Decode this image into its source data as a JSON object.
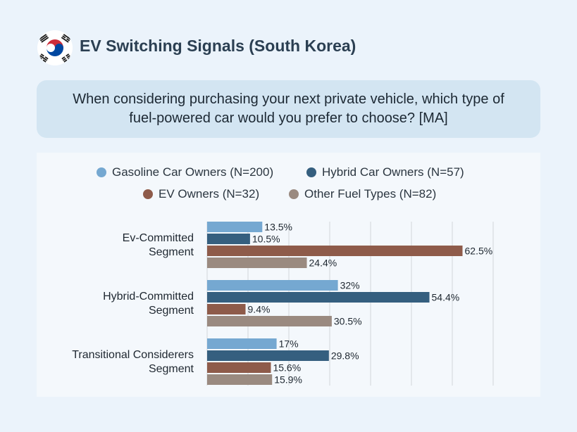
{
  "header": {
    "title": "EV Switching Signals (South Korea)",
    "flag_icon": "south-korea-flag-icon"
  },
  "question": {
    "text": "When considering purchasing your next private vehicle, which type of fuel-powered car would you prefer to choose? [MA]"
  },
  "colors": {
    "gasoline": "#75a8d1",
    "hybrid": "#355f7f",
    "ev": "#8e5b4a",
    "other": "#9a8a80",
    "gridline": "#d2d6da",
    "background": "#ebf3fb"
  },
  "chart_data": {
    "type": "bar",
    "orientation": "horizontal",
    "categories": [
      "Ev-Committed\nSegment",
      "Hybrid-Committed\nSegment",
      "Transitional Considerers\nSegment"
    ],
    "series": [
      {
        "name": "Gasoline Car Owners (N=200)",
        "values": [
          13.5,
          32,
          17
        ],
        "labels": [
          "13.5%",
          "32%",
          "17%"
        ]
      },
      {
        "name": "Hybrid Car Owners (N=57)",
        "values": [
          10.5,
          54.4,
          29.8
        ],
        "labels": [
          "10.5%",
          "54.4%",
          "29.8%"
        ]
      },
      {
        "name": "EV Owners (N=32)",
        "values": [
          62.5,
          9.4,
          15.6
        ],
        "labels": [
          "62.5%",
          "9.4%",
          "15.6%"
        ]
      },
      {
        "name": "Other Fuel Types (N=82)",
        "values": [
          24.4,
          30.5,
          15.9
        ],
        "labels": [
          "24.4%",
          "30.5%",
          "15.9%"
        ]
      }
    ],
    "xlim": [
      0,
      70
    ],
    "grid": true,
    "legend_position": "top"
  }
}
